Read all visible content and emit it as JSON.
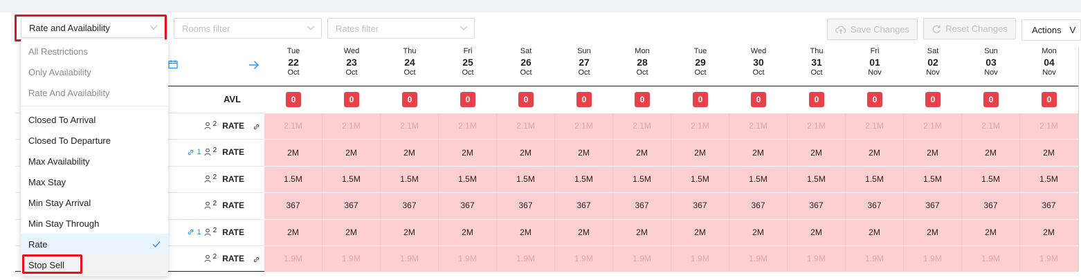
{
  "filters": {
    "view_select": "Rate and Availability",
    "rooms_placeholder": "Rooms filter",
    "rates_placeholder": "Rates filter"
  },
  "toolbar": {
    "save_label": "Save Changes",
    "reset_label": "Reset Changes",
    "actions_label": "Actions",
    "actions_caret": "V"
  },
  "dropdown": {
    "items": [
      "All Restrictions",
      "Only Availability",
      "Rate And Availability",
      "Closed To Arrival",
      "Closed To Departure",
      "Max Availability",
      "Max Stay",
      "Min Stay Arrival",
      "Min Stay Through",
      "Rate",
      "Stop Sell"
    ]
  },
  "dates": [
    {
      "day": "Tue",
      "date": "22",
      "month": "Oct"
    },
    {
      "day": "Wed",
      "date": "23",
      "month": "Oct"
    },
    {
      "day": "Thu",
      "date": "24",
      "month": "Oct"
    },
    {
      "day": "Fri",
      "date": "25",
      "month": "Oct"
    },
    {
      "day": "Sat",
      "date": "26",
      "month": "Oct"
    },
    {
      "day": "Sun",
      "date": "27",
      "month": "Oct"
    },
    {
      "day": "Mon",
      "date": "28",
      "month": "Oct"
    },
    {
      "day": "Tue",
      "date": "29",
      "month": "Oct"
    },
    {
      "day": "Wed",
      "date": "30",
      "month": "Oct"
    },
    {
      "day": "Thu",
      "date": "31",
      "month": "Oct"
    },
    {
      "day": "Fri",
      "date": "01",
      "month": "Nov"
    },
    {
      "day": "Sat",
      "date": "02",
      "month": "Nov"
    },
    {
      "day": "Sun",
      "date": "03",
      "month": "Nov"
    },
    {
      "day": "Mon",
      "date": "04",
      "month": "Nov"
    }
  ],
  "avl": {
    "label": "AVL",
    "value": "0"
  },
  "rows": [
    {
      "label": "RATE",
      "occupancy": "2",
      "linked": "",
      "link_icon_after": true,
      "value": "2.1M",
      "muted": true
    },
    {
      "label": "RATE",
      "occupancy": "2",
      "linked": "1",
      "link_icon_after": false,
      "value": "2M",
      "muted": false
    },
    {
      "label": "RATE",
      "occupancy": "2",
      "linked": "",
      "link_icon_after": false,
      "value": "1.5M",
      "muted": false
    },
    {
      "label": "RATE",
      "occupancy": "2",
      "linked": "",
      "link_icon_after": false,
      "value": "367",
      "muted": false
    },
    {
      "label": "RATE",
      "occupancy": "2",
      "linked": "1",
      "link_icon_after": false,
      "value": "2M",
      "muted": false
    },
    {
      "label": "RATE",
      "occupancy": "2",
      "linked": "",
      "link_icon_after": true,
      "value": "1.9M",
      "muted": true
    }
  ],
  "colors": {
    "highlight": "#e8101a",
    "badge": "#e8414a",
    "cell_bg": "#fdcfd0",
    "accent": "#1890ff"
  }
}
